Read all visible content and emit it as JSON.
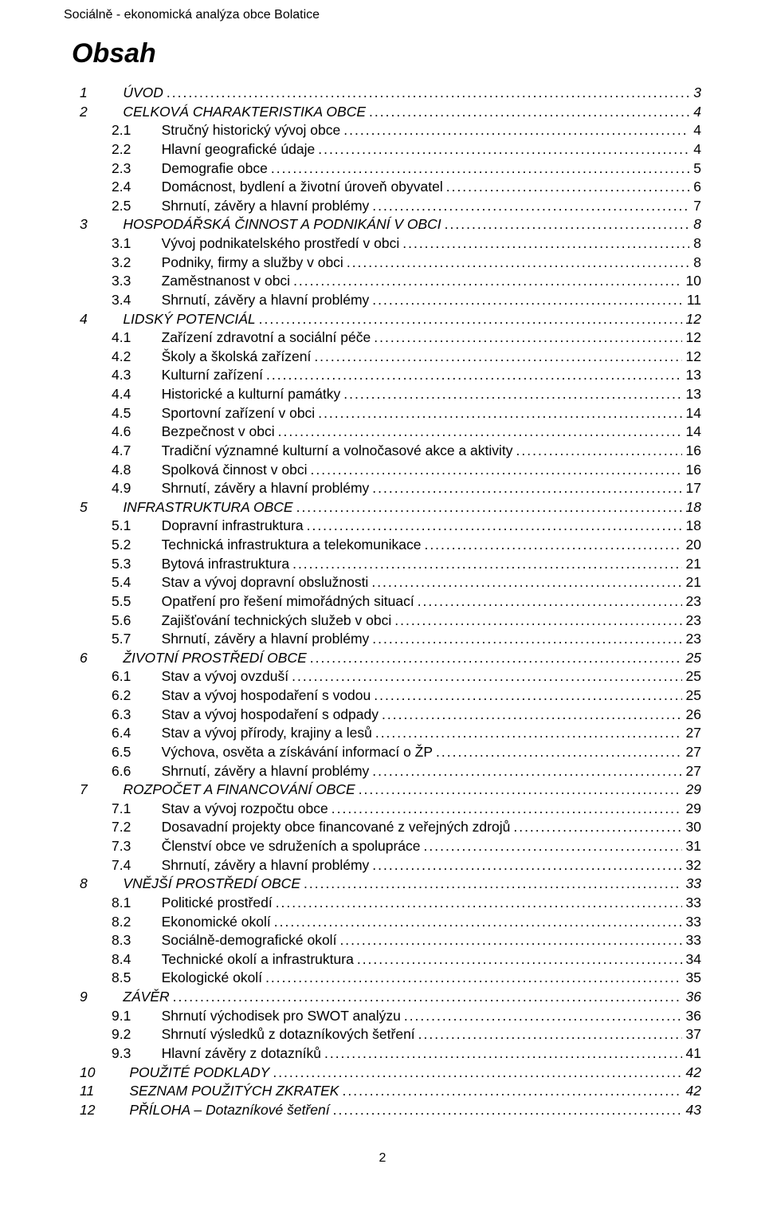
{
  "header": "Sociálně - ekonomická analýza obce Bolatice",
  "toc_title": "Obsah",
  "page_number": "2",
  "entries": [
    {
      "level": 1,
      "num": "1",
      "label": "ÚVOD",
      "page": "3"
    },
    {
      "level": 1,
      "num": "2",
      "label": "CELKOVÁ CHARAKTERISTIKA OBCE",
      "page": "4"
    },
    {
      "level": 2,
      "num": "2.1",
      "label": "Stručný historický vývoj obce",
      "page": "4"
    },
    {
      "level": 2,
      "num": "2.2",
      "label": "Hlavní geografické údaje",
      "page": "4"
    },
    {
      "level": 2,
      "num": "2.3",
      "label": "Demografie obce",
      "page": "5"
    },
    {
      "level": 2,
      "num": "2.4",
      "label": "Domácnost, bydlení a životní úroveň obyvatel",
      "page": "6"
    },
    {
      "level": 2,
      "num": "2.5",
      "label": "Shrnutí, závěry a hlavní problémy",
      "page": "7"
    },
    {
      "level": 1,
      "num": "3",
      "label": "HOSPODÁŘSKÁ ČINNOST A PODNIKÁNÍ V OBCI",
      "page": "8"
    },
    {
      "level": 2,
      "num": "3.1",
      "label": "Vývoj podnikatelského prostředí v obci",
      "page": "8"
    },
    {
      "level": 2,
      "num": "3.2",
      "label": "Podniky, firmy a služby v obci",
      "page": "8"
    },
    {
      "level": 2,
      "num": "3.3",
      "label": "Zaměstnanost v obci",
      "page": "10"
    },
    {
      "level": 2,
      "num": "3.4",
      "label": "Shrnutí, závěry a hlavní problémy",
      "page": "11"
    },
    {
      "level": 1,
      "num": "4",
      "label": "LIDSKÝ POTENCIÁL",
      "page": "12"
    },
    {
      "level": 2,
      "num": "4.1",
      "label": "Zařízení zdravotní a sociální péče",
      "page": "12"
    },
    {
      "level": 2,
      "num": "4.2",
      "label": "Školy a školská zařízení",
      "page": "12"
    },
    {
      "level": 2,
      "num": "4.3",
      "label": "Kulturní zařízení",
      "page": "13"
    },
    {
      "level": 2,
      "num": "4.4",
      "label": "Historické a kulturní památky",
      "page": "13"
    },
    {
      "level": 2,
      "num": "4.5",
      "label": "Sportovní zařízení v obci",
      "page": "14"
    },
    {
      "level": 2,
      "num": "4.6",
      "label": "Bezpečnost v obci",
      "page": "14"
    },
    {
      "level": 2,
      "num": "4.7",
      "label": "Tradiční významné kulturní a volnočasové akce a aktivity",
      "page": "16"
    },
    {
      "level": 2,
      "num": "4.8",
      "label": "Spolková činnost v obci",
      "page": "16"
    },
    {
      "level": 2,
      "num": "4.9",
      "label": "Shrnutí, závěry a hlavní problémy",
      "page": "17"
    },
    {
      "level": 1,
      "num": "5",
      "label": "INFRASTRUKTURA OBCE",
      "page": "18"
    },
    {
      "level": 2,
      "num": "5.1",
      "label": "Dopravní infrastruktura",
      "page": "18"
    },
    {
      "level": 2,
      "num": "5.2",
      "label": "Technická infrastruktura a telekomunikace",
      "page": "20"
    },
    {
      "level": 2,
      "num": "5.3",
      "label": "Bytová infrastruktura",
      "page": "21"
    },
    {
      "level": 2,
      "num": "5.4",
      "label": "Stav a vývoj dopravní obslužnosti",
      "page": "21"
    },
    {
      "level": 2,
      "num": "5.5",
      "label": "Opatření pro řešení mimořádných situací",
      "page": "23"
    },
    {
      "level": 2,
      "num": "5.6",
      "label": "Zajišťování technických služeb v obci",
      "page": "23"
    },
    {
      "level": 2,
      "num": "5.7",
      "label": "Shrnutí, závěry a hlavní problémy",
      "page": "23"
    },
    {
      "level": 1,
      "num": "6",
      "label": "ŽIVOTNÍ PROSTŘEDÍ OBCE",
      "page": "25"
    },
    {
      "level": 2,
      "num": "6.1",
      "label": "Stav a vývoj ovzduší",
      "page": "25"
    },
    {
      "level": 2,
      "num": "6.2",
      "label": "Stav a vývoj hospodaření s vodou",
      "page": "25"
    },
    {
      "level": 2,
      "num": "6.3",
      "label": "Stav a vývoj hospodaření s odpady",
      "page": "26"
    },
    {
      "level": 2,
      "num": "6.4",
      "label": "Stav a vývoj přírody, krajiny a lesů",
      "page": "27"
    },
    {
      "level": 2,
      "num": "6.5",
      "label": "Výchova, osvěta a získávání informací o ŽP",
      "page": "27"
    },
    {
      "level": 2,
      "num": "6.6",
      "label": "Shrnutí, závěry a hlavní problémy",
      "page": "27"
    },
    {
      "level": 1,
      "num": "7",
      "label": "ROZPOČET A FINANCOVÁNÍ OBCE",
      "page": "29"
    },
    {
      "level": 2,
      "num": "7.1",
      "label": "Stav a vývoj rozpočtu obce",
      "page": "29"
    },
    {
      "level": 2,
      "num": "7.2",
      "label": "Dosavadní projekty obce financované z veřejných zdrojů",
      "page": "30"
    },
    {
      "level": 2,
      "num": "7.3",
      "label": "Členství obce ve sdruženích a spolupráce",
      "page": "31"
    },
    {
      "level": 2,
      "num": "7.4",
      "label": "Shrnutí, závěry a hlavní problémy",
      "page": "32"
    },
    {
      "level": 1,
      "num": "8",
      "label": "VNĚJŠÍ PROSTŘEDÍ OBCE",
      "page": "33"
    },
    {
      "level": 2,
      "num": "8.1",
      "label": "Politické prostředí",
      "page": "33"
    },
    {
      "level": 2,
      "num": "8.2",
      "label": "Ekonomické okolí",
      "page": "33"
    },
    {
      "level": 2,
      "num": "8.3",
      "label": "Sociálně-demografické okolí",
      "page": "33"
    },
    {
      "level": 2,
      "num": "8.4",
      "label": "Technické okolí a infrastruktura",
      "page": "34"
    },
    {
      "level": 2,
      "num": "8.5",
      "label": "Ekologické okolí",
      "page": "35"
    },
    {
      "level": 1,
      "num": "9",
      "label": "ZÁVĚR",
      "page": "36"
    },
    {
      "level": 2,
      "num": "9.1",
      "label": "Shrnutí východisek pro SWOT analýzu",
      "page": "36"
    },
    {
      "level": 2,
      "num": "9.2",
      "label": "Shrnutí výsledků z dotazníkových šetření",
      "page": "37"
    },
    {
      "level": 2,
      "num": "9.3",
      "label": "Hlavní závěry z dotazníků",
      "page": "41"
    },
    {
      "level": 1,
      "num": "10",
      "label": "POUŽITÉ PODKLADY",
      "page": "42"
    },
    {
      "level": 1,
      "num": "11",
      "label": "SEZNAM POUŽITÝCH ZKRATEK",
      "page": "42"
    },
    {
      "level": 1,
      "num": "12",
      "label": "PŘÍLOHA – Dotazníkové šetření",
      "page": "43"
    }
  ]
}
